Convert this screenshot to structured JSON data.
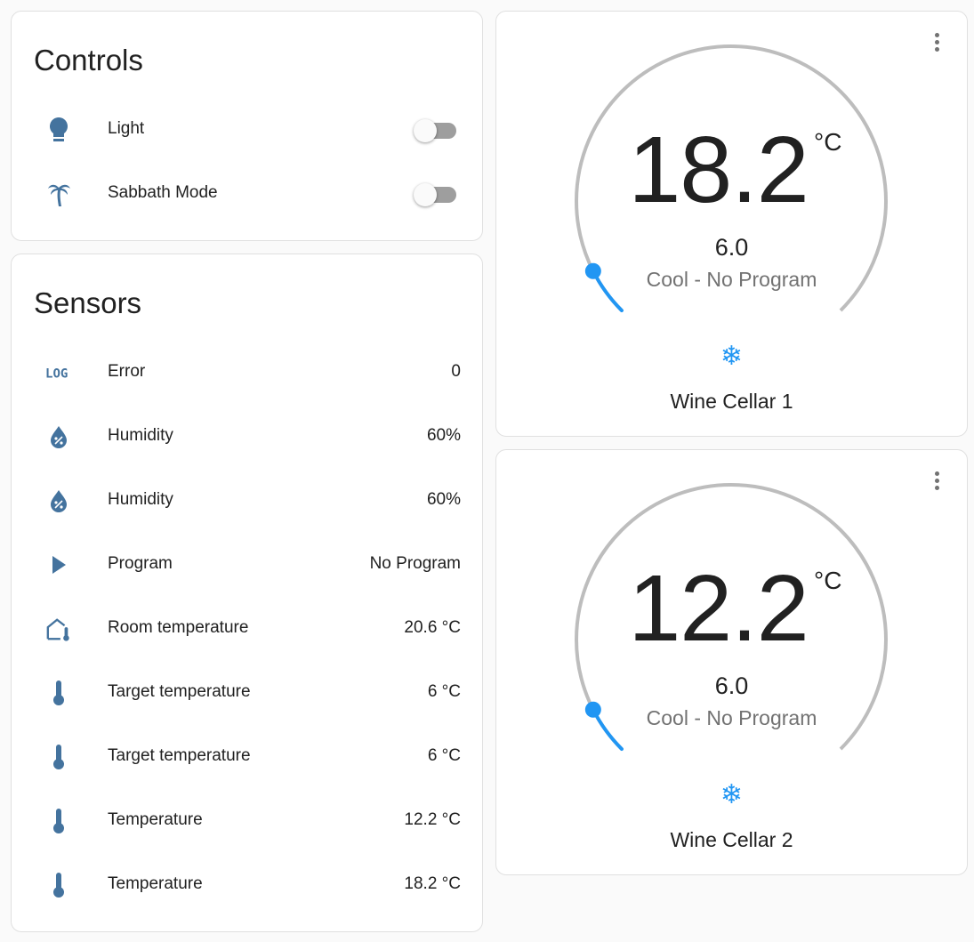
{
  "controls": {
    "title": "Controls",
    "items": [
      {
        "label": "Light",
        "icon": "lightbulb-icon",
        "state": "off"
      },
      {
        "label": "Sabbath Mode",
        "icon": "palm-tree-icon",
        "state": "off"
      }
    ]
  },
  "sensors": {
    "title": "Sensors",
    "items": [
      {
        "label": "Error",
        "value": "0",
        "icon": "log-icon"
      },
      {
        "label": "Humidity",
        "value": "60%",
        "icon": "water-percent-icon"
      },
      {
        "label": "Humidity",
        "value": "60%",
        "icon": "water-percent-icon"
      },
      {
        "label": "Program",
        "value": "No Program",
        "icon": "play-icon"
      },
      {
        "label": "Room temperature",
        "value": "20.6 °C",
        "icon": "home-thermometer-icon"
      },
      {
        "label": "Target temperature",
        "value": "6 °C",
        "icon": "thermometer-icon"
      },
      {
        "label": "Target temperature",
        "value": "6 °C",
        "icon": "thermometer-icon"
      },
      {
        "label": "Temperature",
        "value": "12.2 °C",
        "icon": "thermometer-icon"
      },
      {
        "label": "Temperature",
        "value": "18.2 °C",
        "icon": "thermometer-icon"
      }
    ]
  },
  "thermostats": [
    {
      "name": "Wine Cellar 1",
      "current": "18.2",
      "unit": "°C",
      "target": "6.0",
      "mode": "Cool - No Program",
      "setpoint_fraction": 0.067,
      "mode_icon": "snowflake-icon"
    },
    {
      "name": "Wine Cellar 2",
      "current": "12.2",
      "unit": "°C",
      "target": "6.0",
      "mode": "Cool - No Program",
      "setpoint_fraction": 0.067,
      "mode_icon": "snowflake-icon"
    }
  ],
  "colors": {
    "icon": "#44739e",
    "accent": "#2196f3",
    "track": "#bdbdbd"
  },
  "snow_glyph": "❄"
}
